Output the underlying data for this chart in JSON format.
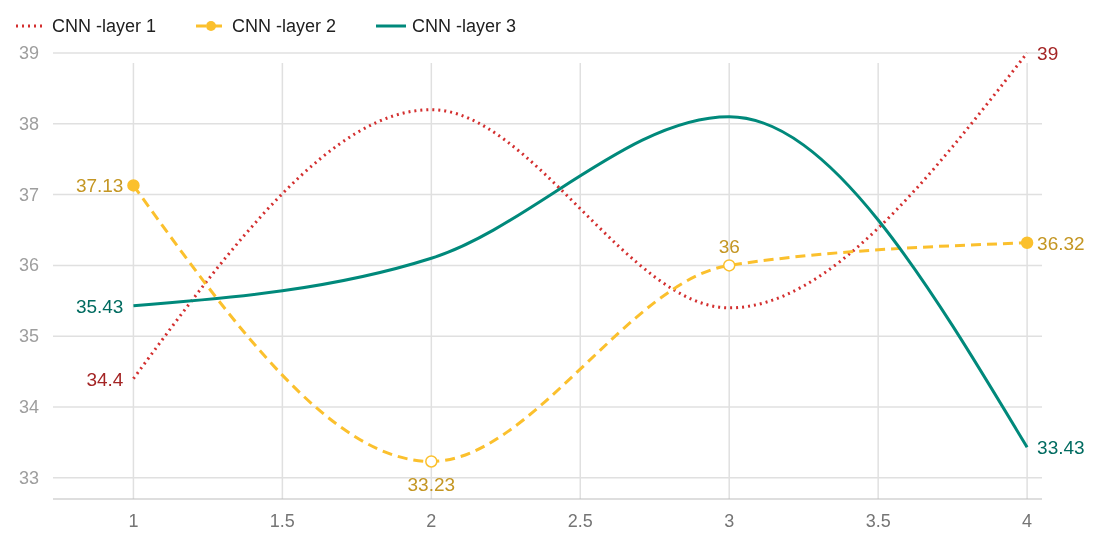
{
  "chart_data": {
    "type": "line",
    "x": [
      1,
      2,
      3,
      4
    ],
    "xlim": [
      0.73,
      4.05
    ],
    "xticks": [
      1,
      1.5,
      2,
      2.5,
      3,
      3.5,
      4
    ],
    "ylim": [
      32.7,
      39
    ],
    "yticks": [
      33,
      34,
      35,
      36,
      37,
      38,
      39
    ],
    "grid": true,
    "legend": "top left",
    "series": [
      {
        "name": "CNN -layer 1",
        "color": "#d32f2f",
        "line_style": "dotted",
        "marker": "none",
        "values": [
          34.4,
          38.2,
          35.4,
          39
        ],
        "value_labels": [
          "34.4",
          null,
          null,
          "39"
        ]
      },
      {
        "name": "CNN -layer 2",
        "color": "#fbc02d",
        "line_style": "dashed",
        "marker": "circle",
        "values": [
          37.13,
          33.23,
          36,
          36.32
        ],
        "value_labels": [
          "37.13",
          "33.23",
          "36",
          "36.32"
        ]
      },
      {
        "name": "CNN -layer 3",
        "color": "#00897b",
        "line_style": "solid",
        "marker": "none",
        "values": [
          35.43,
          36.1,
          38.1,
          33.43
        ],
        "value_labels": [
          "35.43",
          null,
          null,
          "33.43"
        ]
      }
    ]
  }
}
